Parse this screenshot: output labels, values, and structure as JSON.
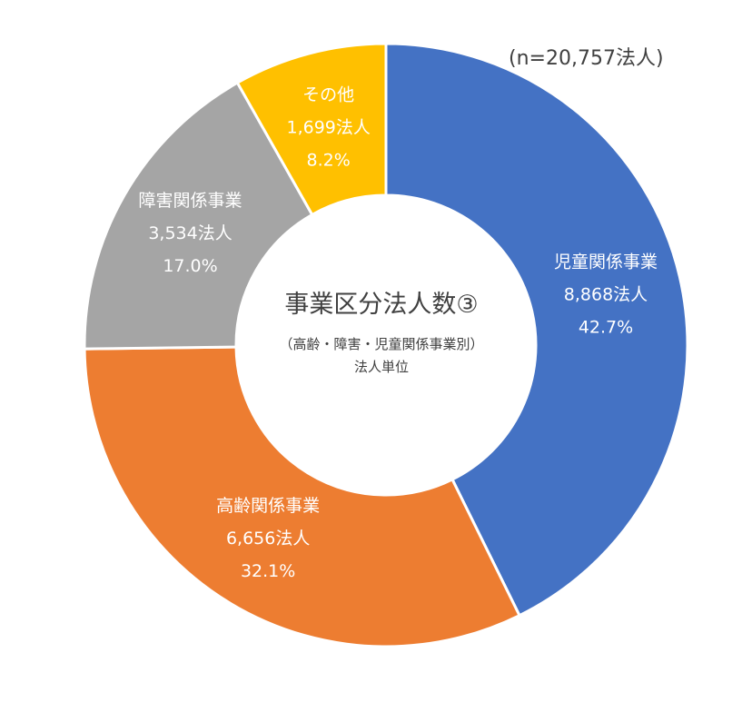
{
  "chart_data": {
    "type": "pie",
    "variant": "donut",
    "title": "事業区分法人数③",
    "subtitle": "（高齢・障害・児童関係事業別）",
    "unit_note": "法人単位",
    "total_note": "(n=20,757法人)",
    "slices": [
      {
        "name": "児童関係事業",
        "count_label": "8,868法人",
        "percent_label": "42.7%",
        "value": 42.7,
        "color": "#4472C4"
      },
      {
        "name": "高齢関係事業",
        "count_label": "6,656法人",
        "percent_label": "32.1%",
        "value": 32.1,
        "color": "#ED7D31"
      },
      {
        "name": "障害関係事業",
        "count_label": "3,534法人",
        "percent_label": "17.0%",
        "value": 17.0,
        "color": "#A5A5A5"
      },
      {
        "name": "その他",
        "count_label": "1,699法人",
        "percent_label": "8.2%",
        "value": 8.2,
        "color": "#FFC000"
      }
    ]
  }
}
